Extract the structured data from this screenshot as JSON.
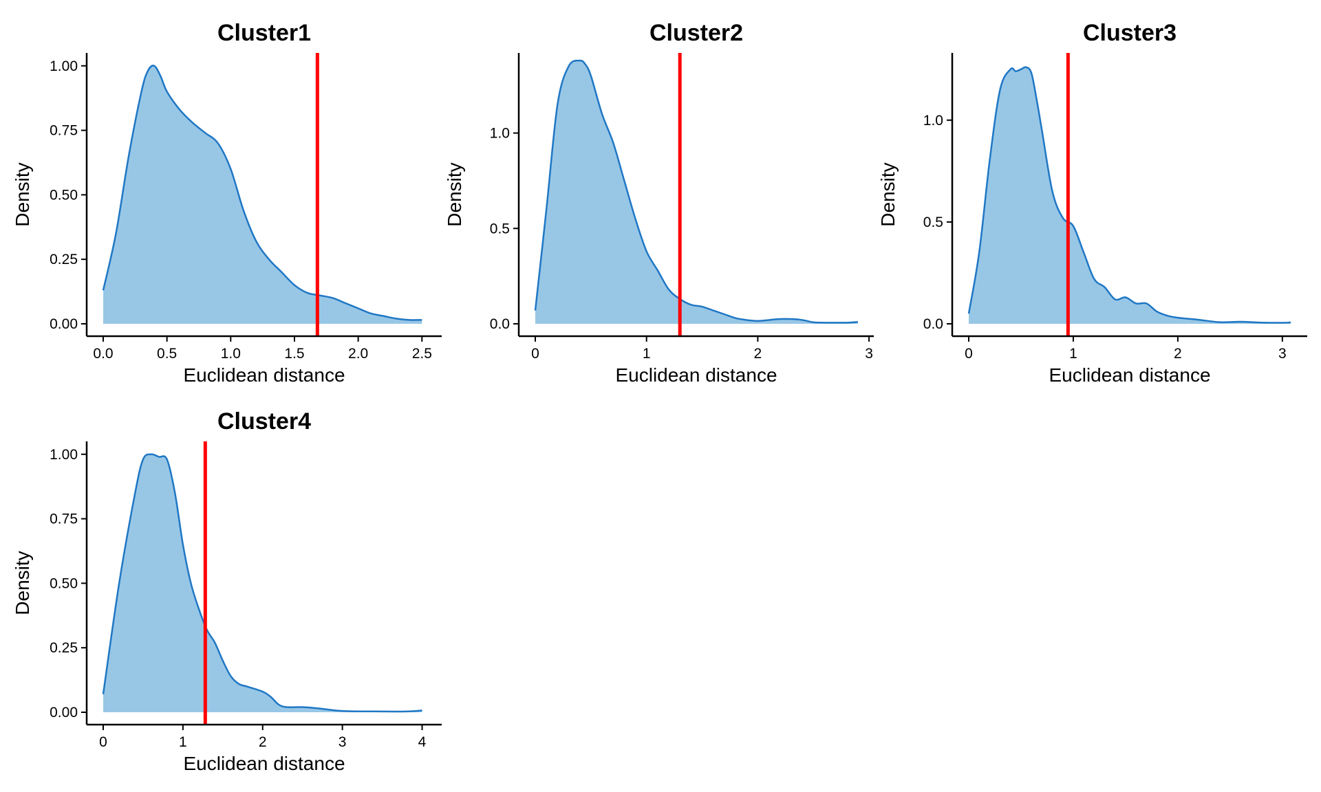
{
  "colors": {
    "fill": "#98c7e6",
    "line": "#1f77c4",
    "vline": "#ff0000",
    "axis": "#000000"
  },
  "chart_data": [
    {
      "type": "area",
      "title": "Cluster1",
      "xlabel": "Euclidean distance",
      "ylabel": "Density",
      "xlim": [
        0,
        2.52
      ],
      "ylim": [
        0,
        1.05
      ],
      "xticks": [
        0,
        0.5,
        1.0,
        1.5,
        2.0,
        2.5
      ],
      "xtick_labels": [
        "0.0",
        "0.5",
        "1.0",
        "1.5",
        "2.0",
        "2.5"
      ],
      "yticks": [
        0,
        0.25,
        0.5,
        0.75,
        1.0
      ],
      "ytick_labels": [
        "0.00",
        "0.25",
        "0.50",
        "0.75",
        "1.00"
      ],
      "vline": 1.68,
      "x": [
        0,
        0.1,
        0.2,
        0.3,
        0.35,
        0.4,
        0.45,
        0.5,
        0.6,
        0.7,
        0.8,
        0.9,
        1.0,
        1.1,
        1.2,
        1.3,
        1.4,
        1.5,
        1.6,
        1.7,
        1.8,
        1.9,
        2.0,
        2.1,
        2.2,
        2.3,
        2.4,
        2.5
      ],
      "y": [
        0.13,
        0.35,
        0.65,
        0.9,
        0.98,
        1.0,
        0.96,
        0.9,
        0.83,
        0.78,
        0.74,
        0.7,
        0.6,
        0.44,
        0.32,
        0.25,
        0.2,
        0.15,
        0.12,
        0.11,
        0.1,
        0.08,
        0.06,
        0.04,
        0.03,
        0.02,
        0.015,
        0.015
      ]
    },
    {
      "type": "area",
      "title": "Cluster2",
      "xlabel": "Euclidean distance",
      "ylabel": "Density",
      "xlim": [
        0,
        2.95
      ],
      "ylim": [
        0,
        1.42
      ],
      "xticks": [
        0,
        1,
        2,
        3
      ],
      "xtick_labels": [
        "0",
        "1",
        "2",
        "3"
      ],
      "yticks": [
        0,
        0.5,
        1.0
      ],
      "ytick_labels": [
        "0.0",
        "0.5",
        "1.0"
      ],
      "vline": 1.3,
      "x": [
        0,
        0.1,
        0.2,
        0.3,
        0.4,
        0.45,
        0.5,
        0.6,
        0.7,
        0.8,
        0.9,
        1.0,
        1.1,
        1.2,
        1.3,
        1.4,
        1.5,
        1.6,
        1.7,
        1.8,
        1.9,
        2.0,
        2.1,
        2.2,
        2.3,
        2.4,
        2.5,
        2.6,
        2.7,
        2.8,
        2.9
      ],
      "y": [
        0.07,
        0.6,
        1.15,
        1.35,
        1.38,
        1.36,
        1.3,
        1.1,
        0.95,
        0.75,
        0.55,
        0.38,
        0.28,
        0.18,
        0.13,
        0.1,
        0.09,
        0.07,
        0.05,
        0.03,
        0.02,
        0.015,
        0.02,
        0.025,
        0.025,
        0.02,
        0.008,
        0.006,
        0.006,
        0.006,
        0.01
      ]
    },
    {
      "type": "area",
      "title": "Cluster3",
      "xlabel": "Euclidean distance",
      "ylabel": "Density",
      "xlim": [
        0,
        3.08
      ],
      "ylim": [
        0,
        1.33
      ],
      "xticks": [
        0,
        1,
        2,
        3
      ],
      "xtick_labels": [
        "0",
        "1",
        "2",
        "3"
      ],
      "yticks": [
        0,
        0.5,
        1.0
      ],
      "ytick_labels": [
        "0.0",
        "0.5",
        "1.0"
      ],
      "vline": 0.95,
      "x": [
        0,
        0.1,
        0.2,
        0.3,
        0.4,
        0.45,
        0.5,
        0.55,
        0.6,
        0.65,
        0.7,
        0.8,
        0.9,
        1.0,
        1.1,
        1.2,
        1.3,
        1.4,
        1.5,
        1.6,
        1.7,
        1.8,
        1.9,
        2.0,
        2.2,
        2.4,
        2.6,
        2.8,
        3.0,
        3.08
      ],
      "y": [
        0.05,
        0.35,
        0.8,
        1.15,
        1.25,
        1.24,
        1.25,
        1.26,
        1.23,
        1.1,
        0.95,
        0.65,
        0.52,
        0.48,
        0.35,
        0.22,
        0.18,
        0.12,
        0.13,
        0.1,
        0.1,
        0.06,
        0.04,
        0.03,
        0.02,
        0.008,
        0.01,
        0.006,
        0.005,
        0.007
      ]
    },
    {
      "type": "area",
      "title": "Cluster4",
      "xlabel": "Euclidean distance",
      "ylabel": "Density",
      "xlim": [
        0,
        4.03
      ],
      "ylim": [
        0,
        1.05
      ],
      "xticks": [
        0,
        1,
        2,
        3,
        4
      ],
      "xtick_labels": [
        "0",
        "1",
        "2",
        "3",
        "4"
      ],
      "yticks": [
        0,
        0.25,
        0.5,
        0.75,
        1.0
      ],
      "ytick_labels": [
        "0.00",
        "0.25",
        "0.50",
        "0.75",
        "1.00"
      ],
      "vline": 1.28,
      "x": [
        0,
        0.2,
        0.4,
        0.5,
        0.6,
        0.7,
        0.8,
        0.9,
        1.0,
        1.1,
        1.2,
        1.3,
        1.4,
        1.5,
        1.6,
        1.7,
        1.8,
        2.0,
        2.1,
        2.2,
        2.3,
        2.5,
        2.7,
        3.0,
        3.5,
        3.8,
        4.0
      ],
      "y": [
        0.07,
        0.5,
        0.85,
        0.98,
        1.0,
        0.99,
        0.98,
        0.85,
        0.65,
        0.5,
        0.4,
        0.32,
        0.27,
        0.2,
        0.14,
        0.11,
        0.1,
        0.08,
        0.06,
        0.03,
        0.02,
        0.02,
        0.015,
        0.005,
        0.003,
        0.003,
        0.007
      ]
    }
  ]
}
